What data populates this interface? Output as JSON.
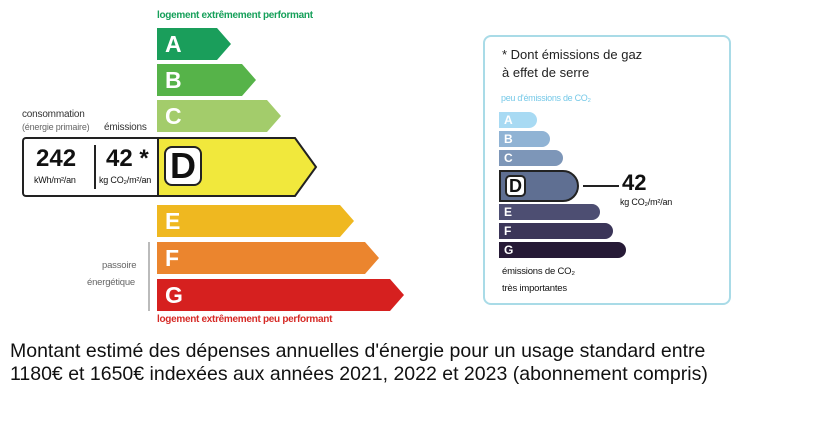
{
  "dpe": {
    "top_caption": "logement extrêmement performant",
    "bottom_caption": "logement extrêmement peu performant",
    "grades": [
      {
        "letter": "A",
        "color": "#1a9e5b"
      },
      {
        "letter": "B",
        "color": "#56b349"
      },
      {
        "letter": "C",
        "color": "#a3cc6b"
      },
      {
        "letter": "D",
        "color": "#f1e83c"
      },
      {
        "letter": "E",
        "color": "#efb820"
      },
      {
        "letter": "F",
        "color": "#eb852e"
      },
      {
        "letter": "G",
        "color": "#d6201f"
      }
    ],
    "current_grade": "D",
    "consumption_label_line1": "consommation",
    "consumption_label_line2": "(énergie primaire)",
    "emissions_label": "émissions",
    "consumption_value": "242",
    "consumption_unit": "kWh/m²/an",
    "emissions_value": "42 *",
    "emissions_unit": "kg CO₂/m²/an",
    "passoire_line1": "passoire",
    "passoire_line2": "énergétique"
  },
  "ges": {
    "title_line1": "* Dont émissions de gaz",
    "title_line2": "à effet de serre",
    "top_caption": "peu d'émissions de CO₂",
    "grades": [
      {
        "letter": "A",
        "color": "#a8daf3"
      },
      {
        "letter": "B",
        "color": "#90b3d4"
      },
      {
        "letter": "C",
        "color": "#7d96b8"
      },
      {
        "letter": "D",
        "color": "#5f6f92"
      },
      {
        "letter": "E",
        "color": "#4d4e72"
      },
      {
        "letter": "F",
        "color": "#3b3558"
      },
      {
        "letter": "G",
        "color": "#261a36"
      }
    ],
    "current_grade": "D",
    "value": "42",
    "unit": "kg CO₂/m²/an",
    "bottom_caption_line1": "émissions de CO₂",
    "bottom_caption_line2": "très importantes"
  },
  "footer": {
    "line1": "Montant estimé des dépenses annuelles d'énergie pour un usage standard entre",
    "line2": "1180€ et 1650€ indexées aux années 2021, 2022 et 2023 (abonnement compris)"
  }
}
